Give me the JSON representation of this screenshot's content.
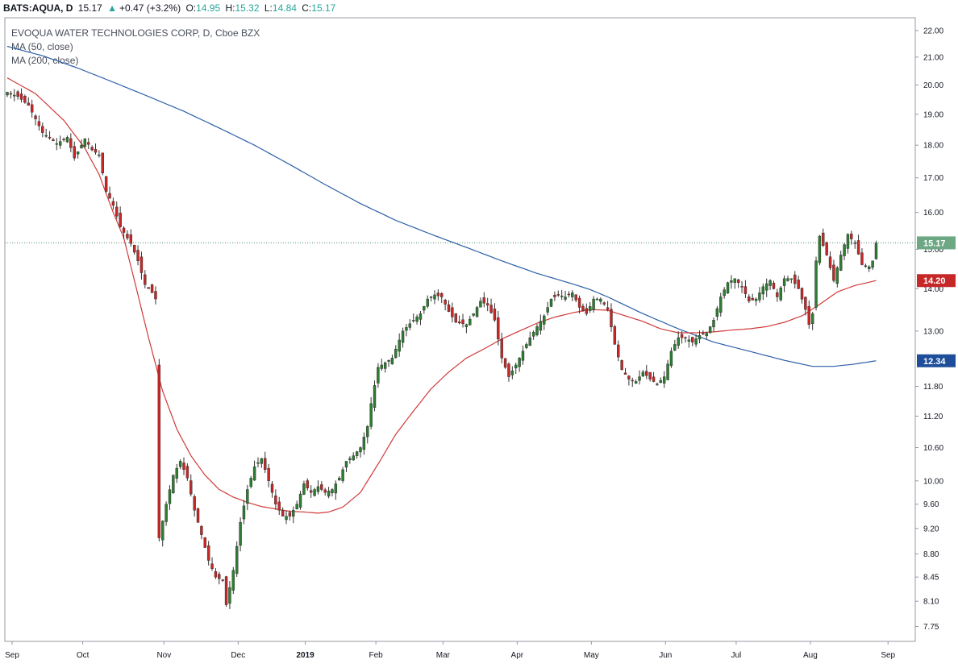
{
  "header": {
    "symbol": "BATS:AQUA, D",
    "last": "15.17",
    "change": "+0.47 (+3.2%)",
    "open_label": "O:",
    "open": "14.95",
    "high_label": "H:",
    "high": "15.32",
    "low_label": "L:",
    "low": "14.84",
    "close_label": "C:",
    "close": "15.17",
    "up_arrow": "▲"
  },
  "legend": {
    "title": "EVOQUA WATER TECHNOLOGIES CORP, D, Cboe BZX",
    "ma50": "MA (50, close)",
    "ma200": "MA (200, close)"
  },
  "colors": {
    "up": "#26a69a",
    "up_body": "#2e7d32",
    "down": "#c62828",
    "ma50": "#d03a3a",
    "ma200": "#2c5fa8",
    "price_line": "#4a8a6a",
    "badge_last": "#6ca883",
    "badge_ma50": "#c62828",
    "badge_ma200": "#1e4e9a"
  },
  "chart_data": {
    "type": "candlestick",
    "title": "EVOQUA WATER TECHNOLOGIES CORP, D, Cboe BZX",
    "y_scale": "log",
    "ylim": [
      7.55,
      22.5
    ],
    "y_ticks": [
      22.0,
      21.0,
      20.0,
      19.0,
      18.0,
      17.0,
      16.0,
      15.0,
      14.0,
      13.0,
      11.8,
      11.2,
      10.6,
      10.0,
      9.6,
      9.2,
      8.8,
      8.45,
      8.1,
      7.75
    ],
    "y_tick_labels": [
      "22.00",
      "21.00",
      "20.00",
      "19.00",
      "18.00",
      "17.00",
      "16.00",
      "15.00",
      "14.00",
      "13.00",
      "11.80",
      "11.20",
      "10.60",
      "10.00",
      "9.60",
      "9.20",
      "8.80",
      "8.45",
      "8.10",
      "7.75"
    ],
    "x_labels": [
      {
        "text": "Sep",
        "bar": 0,
        "bold": false
      },
      {
        "text": "Oct",
        "bar": 20,
        "bold": false
      },
      {
        "text": "Nov",
        "bar": 43,
        "bold": false
      },
      {
        "text": "Dec",
        "bar": 64,
        "bold": false
      },
      {
        "text": "2019",
        "bar": 83,
        "bold": true
      },
      {
        "text": "Feb",
        "bar": 103,
        "bold": false
      },
      {
        "text": "Mar",
        "bar": 122,
        "bold": false
      },
      {
        "text": "Apr",
        "bar": 143,
        "bold": false
      },
      {
        "text": "May",
        "bar": 164,
        "bold": false
      },
      {
        "text": "Jun",
        "bar": 185,
        "bold": false
      },
      {
        "text": "Jul",
        "bar": 205,
        "bold": false
      },
      {
        "text": "Aug",
        "bar": 226,
        "bold": false
      },
      {
        "text": "Sep",
        "bar": 248,
        "bold": false
      }
    ],
    "price_anchors": [
      [
        0,
        19.75
      ],
      [
        3,
        19.6
      ],
      [
        6,
        19.3
      ],
      [
        10,
        18.4
      ],
      [
        14,
        18.05
      ],
      [
        17,
        18.25
      ],
      [
        19,
        17.6
      ],
      [
        22,
        18.2
      ],
      [
        24,
        17.85
      ],
      [
        26,
        17.7
      ],
      [
        28,
        16.6
      ],
      [
        30,
        16.2
      ],
      [
        32,
        15.6
      ],
      [
        35,
        15.15
      ],
      [
        37,
        14.7
      ],
      [
        39,
        14.1
      ],
      [
        41,
        13.9
      ],
      [
        42,
        13.75
      ],
      [
        43,
        9.05
      ],
      [
        45,
        9.6
      ],
      [
        47,
        10.1
      ],
      [
        49,
        10.35
      ],
      [
        51,
        10.05
      ],
      [
        53,
        9.5
      ],
      [
        55,
        9.1
      ],
      [
        57,
        8.7
      ],
      [
        59,
        8.45
      ],
      [
        61,
        8.4
      ],
      [
        62,
        8.05
      ],
      [
        64,
        8.55
      ],
      [
        66,
        9.3
      ],
      [
        68,
        9.85
      ],
      [
        70,
        10.25
      ],
      [
        72,
        10.4
      ],
      [
        74,
        10.0
      ],
      [
        76,
        9.6
      ],
      [
        78,
        9.4
      ],
      [
        80,
        9.4
      ],
      [
        82,
        9.6
      ],
      [
        84,
        9.95
      ],
      [
        86,
        9.8
      ],
      [
        88,
        9.9
      ],
      [
        90,
        9.8
      ],
      [
        92,
        9.85
      ],
      [
        94,
        10.05
      ],
      [
        96,
        10.35
      ],
      [
        98,
        10.45
      ],
      [
        100,
        10.6
      ],
      [
        102,
        11.0
      ],
      [
        103,
        11.45
      ],
      [
        105,
        12.2
      ],
      [
        107,
        12.3
      ],
      [
        109,
        12.4
      ],
      [
        112,
        13.0
      ],
      [
        115,
        13.25
      ],
      [
        117,
        13.4
      ],
      [
        119,
        13.75
      ],
      [
        121,
        13.85
      ],
      [
        123,
        13.8
      ],
      [
        125,
        13.45
      ],
      [
        127,
        13.2
      ],
      [
        130,
        13.15
      ],
      [
        132,
        13.4
      ],
      [
        134,
        13.7
      ],
      [
        136,
        13.6
      ],
      [
        138,
        13.25
      ],
      [
        140,
        12.4
      ],
      [
        142,
        12.0
      ],
      [
        144,
        12.25
      ],
      [
        146,
        12.55
      ],
      [
        148,
        12.85
      ],
      [
        150,
        13.1
      ],
      [
        152,
        13.35
      ],
      [
        154,
        13.75
      ],
      [
        156,
        13.85
      ],
      [
        158,
        13.8
      ],
      [
        160,
        13.9
      ],
      [
        162,
        13.55
      ],
      [
        164,
        13.4
      ],
      [
        166,
        13.75
      ],
      [
        168,
        13.75
      ],
      [
        170,
        13.5
      ],
      [
        172,
        12.7
      ],
      [
        174,
        12.15
      ],
      [
        176,
        11.95
      ],
      [
        178,
        11.9
      ],
      [
        180,
        12.1
      ],
      [
        182,
        11.95
      ],
      [
        184,
        11.85
      ],
      [
        186,
        12.0
      ],
      [
        188,
        12.55
      ],
      [
        190,
        12.85
      ],
      [
        192,
        12.85
      ],
      [
        194,
        12.75
      ],
      [
        196,
        12.9
      ],
      [
        198,
        12.95
      ],
      [
        200,
        13.25
      ],
      [
        202,
        13.8
      ],
      [
        204,
        14.15
      ],
      [
        206,
        14.25
      ],
      [
        208,
        14.05
      ],
      [
        210,
        13.7
      ],
      [
        212,
        13.75
      ],
      [
        214,
        14.05
      ],
      [
        216,
        14.2
      ],
      [
        218,
        13.8
      ],
      [
        220,
        14.25
      ],
      [
        222,
        14.25
      ],
      [
        224,
        14.0
      ],
      [
        226,
        13.5
      ],
      [
        227,
        13.15
      ],
      [
        228,
        13.4
      ],
      [
        229,
        14.7
      ],
      [
        230,
        15.35
      ],
      [
        232,
        14.85
      ],
      [
        234,
        14.2
      ],
      [
        236,
        14.85
      ],
      [
        238,
        15.4
      ],
      [
        240,
        15.15
      ],
      [
        242,
        14.6
      ],
      [
        244,
        14.55
      ],
      [
        245,
        14.7
      ],
      [
        246,
        15.17
      ]
    ],
    "ma50": [
      [
        0,
        20.25
      ],
      [
        8,
        19.7
      ],
      [
        16,
        18.8
      ],
      [
        22,
        17.9
      ],
      [
        26,
        17.1
      ],
      [
        30,
        16.0
      ],
      [
        33,
        15.3
      ],
      [
        36,
        14.2
      ],
      [
        40,
        12.85
      ],
      [
        44,
        11.7
      ],
      [
        48,
        10.95
      ],
      [
        52,
        10.45
      ],
      [
        56,
        10.1
      ],
      [
        60,
        9.85
      ],
      [
        64,
        9.72
      ],
      [
        68,
        9.63
      ],
      [
        72,
        9.56
      ],
      [
        76,
        9.52
      ],
      [
        80,
        9.48
      ],
      [
        84,
        9.47
      ],
      [
        88,
        9.45
      ],
      [
        91,
        9.47
      ],
      [
        95,
        9.55
      ],
      [
        100,
        9.8
      ],
      [
        105,
        10.3
      ],
      [
        110,
        10.85
      ],
      [
        115,
        11.3
      ],
      [
        120,
        11.75
      ],
      [
        125,
        12.1
      ],
      [
        130,
        12.4
      ],
      [
        135,
        12.6
      ],
      [
        140,
        12.82
      ],
      [
        145,
        13.0
      ],
      [
        150,
        13.18
      ],
      [
        155,
        13.32
      ],
      [
        160,
        13.42
      ],
      [
        165,
        13.5
      ],
      [
        170,
        13.48
      ],
      [
        175,
        13.35
      ],
      [
        180,
        13.22
      ],
      [
        185,
        13.05
      ],
      [
        190,
        12.96
      ],
      [
        195,
        12.96
      ],
      [
        200,
        12.98
      ],
      [
        205,
        13.02
      ],
      [
        210,
        13.05
      ],
      [
        215,
        13.1
      ],
      [
        220,
        13.2
      ],
      [
        225,
        13.35
      ],
      [
        230,
        13.62
      ],
      [
        235,
        13.92
      ],
      [
        240,
        14.08
      ],
      [
        246,
        14.2
      ]
    ],
    "ma200": [
      [
        0,
        21.4
      ],
      [
        10,
        21.05
      ],
      [
        20,
        20.6
      ],
      [
        30,
        20.1
      ],
      [
        40,
        19.6
      ],
      [
        50,
        19.1
      ],
      [
        60,
        18.55
      ],
      [
        70,
        18.0
      ],
      [
        80,
        17.4
      ],
      [
        90,
        16.8
      ],
      [
        100,
        16.25
      ],
      [
        110,
        15.78
      ],
      [
        120,
        15.4
      ],
      [
        130,
        15.05
      ],
      [
        140,
        14.7
      ],
      [
        150,
        14.38
      ],
      [
        160,
        14.12
      ],
      [
        165,
        13.98
      ],
      [
        170,
        13.8
      ],
      [
        180,
        13.4
      ],
      [
        190,
        13.05
      ],
      [
        200,
        12.75
      ],
      [
        210,
        12.55
      ],
      [
        220,
        12.35
      ],
      [
        228,
        12.22
      ],
      [
        234,
        12.22
      ],
      [
        240,
        12.27
      ],
      [
        246,
        12.34
      ]
    ],
    "last_value": 15.17,
    "last_label": "15.17",
    "ma50_value": 14.2,
    "ma50_label": "14.20",
    "ma200_value": 12.34,
    "ma200_label": "12.34",
    "grid": false,
    "legend_position": "top-left"
  }
}
